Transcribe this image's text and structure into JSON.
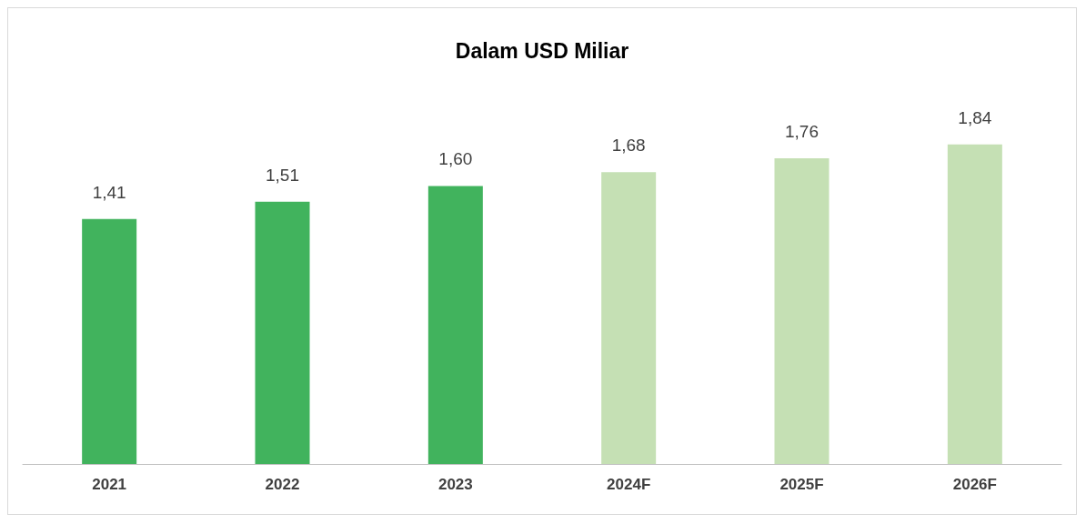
{
  "chart_data": {
    "type": "bar",
    "title": "Dalam USD Miliar",
    "categories": [
      "2021",
      "2022",
      "2023",
      "2024F",
      "2025F",
      "2026F"
    ],
    "values": [
      1.41,
      1.51,
      1.6,
      1.68,
      1.76,
      1.84
    ],
    "colors": [
      "#41b35d",
      "#41b35d",
      "#41b35d",
      "#c5e0b4",
      "#c5e0b4",
      "#c5e0b4"
    ],
    "value_labels": [
      "1,41",
      "1,51",
      "1,60",
      "1,68",
      "1,76",
      "1,84"
    ]
  }
}
